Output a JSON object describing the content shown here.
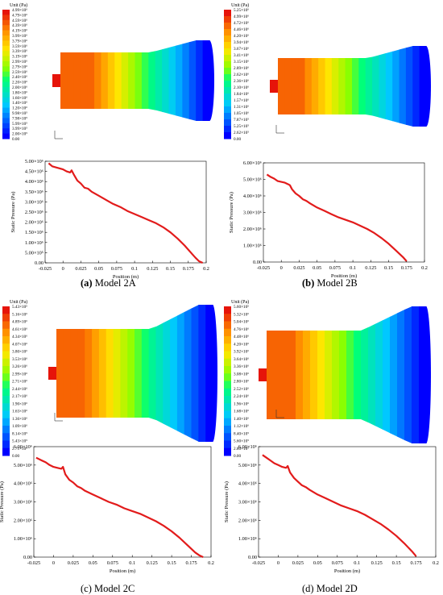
{
  "panels": [
    {
      "id": "a",
      "caption_letter": "(a)",
      "caption_text": " Model 2A",
      "caption_bold": true,
      "contour": {
        "unit": "Unit (Pa)",
        "levels": [
          "4.99×10⁶",
          "4.79×10⁶",
          "4.59×10⁶",
          "4.39×10⁶",
          "4.19×10⁶",
          "3.99×10⁶",
          "3.79×10⁶",
          "3.59×10⁶",
          "3.39×10⁶",
          "3.19×10⁶",
          "2.99×10⁶",
          "2.79×10⁶",
          "2.59×10⁶",
          "2.40×10⁶",
          "2.20×10⁶",
          "2.00×10⁶",
          "1.80×10⁶",
          "1.60×10⁶",
          "1.40×10⁶",
          "1.20×10⁶",
          "9.98×10⁵",
          "7.98×10⁵",
          "5.99×10⁵",
          "3.99×10⁵",
          "2.00×10⁵",
          "0.00"
        ]
      },
      "chart_data": {
        "type": "line",
        "xlabel": "Position (m)",
        "ylabel": "Static Pressure (Pa)",
        "xticks": [
          "-0.025",
          "0",
          "0.025",
          "0.05",
          "0.075",
          "0.1",
          "0.125",
          "0.15",
          "0.175",
          "0.2"
        ],
        "yticks": [
          "0.00",
          "5.00×10⁵",
          "1.00×10⁶",
          "1.50×10⁶",
          "2.00×10⁶",
          "2.50×10⁶",
          "3.00×10⁶",
          "3.50×10⁶",
          "4.00×10⁶",
          "4.50×10⁶",
          "5.00×10⁶"
        ],
        "xlim": [
          -0.025,
          0.2
        ],
        "ylim": [
          0,
          5000000
        ],
        "color": "#e21b1b",
        "x": [
          -0.02,
          -0.015,
          -0.01,
          -0.005,
          0,
          0.005,
          0.01,
          0.012,
          0.015,
          0.02,
          0.025,
          0.03,
          0.035,
          0.04,
          0.05,
          0.06,
          0.07,
          0.08,
          0.09,
          0.1,
          0.11,
          0.12,
          0.13,
          0.14,
          0.15,
          0.16,
          0.17,
          0.18,
          0.185,
          0.19,
          0.195
        ],
        "y": [
          4900000,
          4750000,
          4700000,
          4650000,
          4600000,
          4500000,
          4450000,
          4550000,
          4350000,
          4050000,
          3900000,
          3700000,
          3650000,
          3500000,
          3300000,
          3100000,
          2900000,
          2750000,
          2550000,
          2400000,
          2250000,
          2100000,
          1950000,
          1750000,
          1500000,
          1200000,
          850000,
          450000,
          250000,
          80000,
          0
        ]
      }
    },
    {
      "id": "b",
      "caption_letter": "(b)",
      "caption_text": " Model 2B",
      "caption_bold": true,
      "contour": {
        "unit": "Unit (Pa)",
        "levels": [
          "5.25×10⁶",
          "4.99×10⁶",
          "4.72×10⁶",
          "4.46×10⁶",
          "4.20×10⁶",
          "3.94×10⁶",
          "3.67×10⁶",
          "3.41×10⁶",
          "3.15×10⁶",
          "2.89×10⁶",
          "2.62×10⁶",
          "2.36×10⁶",
          "2.10×10⁶",
          "1.84×10⁶",
          "1.57×10⁶",
          "1.31×10⁶",
          "1.05×10⁶",
          "7.87×10⁵",
          "5.25×10⁵",
          "2.62×10⁵",
          "0.00"
        ]
      },
      "chart_data": {
        "type": "line",
        "xlabel": "Position (m)",
        "ylabel": "Static Pressure (Pa)",
        "xticks": [
          "-0.025",
          "0",
          "0.025",
          "0.05",
          "0.075",
          "0.1",
          "0.125",
          "0.15",
          "0.175",
          "0.2"
        ],
        "yticks": [
          "0.00",
          "1.00×10⁶",
          "2.00×10⁶",
          "3.00×10⁶",
          "4.00×10⁶",
          "5.00×10⁶",
          "6.00×10⁶"
        ],
        "xlim": [
          -0.025,
          0.2
        ],
        "ylim": [
          0,
          6000000
        ],
        "color": "#e21b1b",
        "x": [
          -0.02,
          -0.015,
          -0.01,
          -0.005,
          0,
          0.005,
          0.01,
          0.012,
          0.015,
          0.02,
          0.025,
          0.03,
          0.035,
          0.04,
          0.05,
          0.06,
          0.07,
          0.08,
          0.09,
          0.1,
          0.11,
          0.12,
          0.13,
          0.14,
          0.15,
          0.16,
          0.17,
          0.175
        ],
        "y": [
          5300000,
          5150000,
          5050000,
          4900000,
          4850000,
          4800000,
          4700000,
          4650000,
          4400000,
          4150000,
          4000000,
          3800000,
          3700000,
          3550000,
          3300000,
          3100000,
          2900000,
          2700000,
          2550000,
          2400000,
          2200000,
          2000000,
          1750000,
          1450000,
          1100000,
          700000,
          300000,
          50000
        ]
      }
    },
    {
      "id": "c",
      "caption_letter": "(c)",
      "caption_text": " Model 2C",
      "caption_bold": false,
      "contour": {
        "unit": "Unit (Pa)",
        "levels": [
          "5.43×10⁶",
          "5.16×10⁶",
          "4.89×10⁶",
          "4.61×10⁶",
          "4.34×10⁶",
          "4.07×10⁶",
          "3.80×10⁶",
          "3.53×10⁶",
          "3.26×10⁶",
          "2.99×10⁶",
          "2.71×10⁶",
          "2.44×10⁶",
          "2.17×10⁶",
          "1.90×10⁶",
          "1.63×10⁶",
          "1.36×10⁶",
          "1.09×10⁶",
          "8.14×10⁵",
          "5.43×10⁵",
          "2.71×10⁵",
          "0.00"
        ]
      },
      "chart_data": {
        "type": "line",
        "xlabel": "Position (m)",
        "ylabel": "Static Pressure (Pa)",
        "xticks": [
          "-0.025",
          "0",
          "0.025",
          "0.05",
          "0.075",
          "0.1",
          "0.125",
          "0.15",
          "0.175",
          "0.2"
        ],
        "yticks": [
          "0.00",
          "1.00×10⁶",
          "2.00×10⁶",
          "3.00×10⁶",
          "4.00×10⁶",
          "5.00×10⁶",
          "6.00×10⁶"
        ],
        "xlim": [
          -0.025,
          0.2
        ],
        "ylim": [
          0,
          6000000
        ],
        "color": "#e21b1b",
        "x": [
          -0.022,
          -0.015,
          -0.01,
          -0.005,
          0,
          0.005,
          0.01,
          0.012,
          0.015,
          0.02,
          0.025,
          0.03,
          0.035,
          0.04,
          0.05,
          0.06,
          0.07,
          0.08,
          0.09,
          0.1,
          0.11,
          0.12,
          0.13,
          0.14,
          0.15,
          0.16,
          0.17,
          0.18,
          0.185,
          0.19
        ],
        "y": [
          5400000,
          5250000,
          5150000,
          5000000,
          4900000,
          4850000,
          4800000,
          4900000,
          4500000,
          4200000,
          4050000,
          3850000,
          3750000,
          3600000,
          3400000,
          3200000,
          3000000,
          2850000,
          2650000,
          2500000,
          2350000,
          2150000,
          1950000,
          1700000,
          1400000,
          1050000,
          650000,
          250000,
          100000,
          0
        ]
      }
    },
    {
      "id": "d",
      "caption_letter": "(d)",
      "caption_text": " Model 2D",
      "caption_bold": false,
      "contour": {
        "unit": "Unit (Pa)",
        "levels": [
          "5.60×10⁶",
          "5.32×10⁶",
          "5.04×10⁶",
          "4.76×10⁶",
          "4.48×10⁶",
          "4.20×10⁶",
          "3.92×10⁶",
          "3.64×10⁶",
          "3.36×10⁶",
          "3.08×10⁶",
          "2.80×10⁶",
          "2.52×10⁶",
          "2.24×10⁶",
          "1.96×10⁶",
          "1.68×10⁶",
          "1.40×10⁶",
          "1.12×10⁶",
          "8.40×10⁵",
          "5.60×10⁵",
          "2.80×10⁵",
          "0.00"
        ]
      },
      "chart_data": {
        "type": "line",
        "xlabel": "Position (m)",
        "ylabel": "Static Pressure (Pa)",
        "xticks": [
          "-0.025",
          "0",
          "0.025",
          "0.05",
          "0.075",
          "0.1",
          "0.125",
          "0.15",
          "0.175",
          "0.2"
        ],
        "yticks": [
          "0.00",
          "1.00×10⁶",
          "2.00×10⁶",
          "3.00×10⁶",
          "4.00×10⁶",
          "5.00×10⁶",
          "6.00×10⁶"
        ],
        "xlim": [
          -0.025,
          0.2
        ],
        "ylim": [
          0,
          6000000
        ],
        "color": "#e21b1b",
        "x": [
          -0.02,
          -0.015,
          -0.01,
          -0.005,
          0,
          0.005,
          0.01,
          0.012,
          0.015,
          0.02,
          0.025,
          0.03,
          0.035,
          0.04,
          0.05,
          0.06,
          0.07,
          0.08,
          0.09,
          0.1,
          0.11,
          0.12,
          0.13,
          0.14,
          0.15,
          0.16,
          0.17,
          0.175
        ],
        "y": [
          5550000,
          5400000,
          5250000,
          5100000,
          5000000,
          4900000,
          4850000,
          4950000,
          4600000,
          4300000,
          4100000,
          3900000,
          3800000,
          3650000,
          3400000,
          3200000,
          3000000,
          2800000,
          2650000,
          2500000,
          2300000,
          2050000,
          1800000,
          1500000,
          1150000,
          750000,
          300000,
          50000
        ]
      }
    }
  ]
}
